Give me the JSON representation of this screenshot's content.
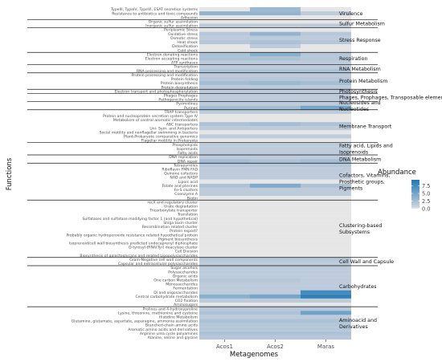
{
  "chart_data": {
    "type": "heatmap",
    "title": "",
    "xlabel": "Metagenomes",
    "ylabel": "Functions",
    "columns": [
      "Acos1",
      "Acos2",
      "Maras"
    ],
    "legend": {
      "title": "Abundance",
      "ticks": [
        0.0,
        2.5,
        5.0,
        7.5
      ],
      "range": [
        0,
        9.5
      ],
      "low_color": "#c7d0dc",
      "high_color": "#1f78b4",
      "zero_color": "#e6e6e6",
      "placement": "right"
    },
    "grid": false,
    "groups": [
      {
        "name": "Virulence",
        "rows": [
          {
            "label": "TypeIII, TypeIV, TypeVI, ESAT secretion systems",
            "values": [
              0,
              2.5,
              0
            ]
          },
          {
            "label": "Resistance to antibiotics and toxic compounds",
            "values": [
              3.0,
              3.0,
              0.5
            ]
          },
          {
            "label": "Adhesion",
            "values": [
              0,
              0,
              0
            ]
          }
        ]
      },
      {
        "name": "Sulfur Metabolism",
        "rows": [
          {
            "label": "Organic sulfur assimilation",
            "values": [
              0,
              0,
              0
            ]
          },
          {
            "label": "Inorganic sulfur assimilation",
            "values": [
              0.5,
              0.5,
              0.5
            ]
          }
        ]
      },
      {
        "name": "Stress Response",
        "rows": [
          {
            "label": "Periplasmic Stress",
            "values": [
              0,
              0,
              0
            ]
          },
          {
            "label": "Oxidative stress",
            "values": [
              1.0,
              3.0,
              1.0
            ]
          },
          {
            "label": "Osmotic stress",
            "values": [
              0.5,
              0.5,
              0.5
            ]
          },
          {
            "label": "Heat shock",
            "values": [
              1.0,
              1.5,
              1.0
            ]
          },
          {
            "label": "Detoxification",
            "values": [
              0,
              0.5,
              0
            ]
          },
          {
            "label": "Cold shock",
            "values": [
              0,
              0,
              0
            ]
          }
        ]
      },
      {
        "name": "Respiration",
        "rows": [
          {
            "label": "Electron donating reactions",
            "values": [
              1.5,
              3.5,
              1.0
            ]
          },
          {
            "label": "Electron accepting reactions",
            "values": [
              1.5,
              1.5,
              1.0
            ]
          },
          {
            "label": "ATP synthases",
            "values": [
              0.5,
              0.5,
              0.5
            ]
          }
        ]
      },
      {
        "name": "RNA Metabolism",
        "rows": [
          {
            "label": "Transcription",
            "values": [
              0.5,
              0.5,
              0.5
            ]
          },
          {
            "label": "RNA processing and modification",
            "values": [
              1.5,
              1.5,
              1.5
            ]
          }
        ]
      },
      {
        "name": "Protein Metabolism",
        "rows": [
          {
            "label": "Protein processing and modification",
            "values": [
              0.5,
              0.5,
              0.5
            ]
          },
          {
            "label": "Protein folding",
            "values": [
              1.0,
              1.0,
              1.0
            ]
          },
          {
            "label": "Protein biosynthesis",
            "values": [
              2.0,
              2.5,
              2.0
            ]
          },
          {
            "label": "Protein degradation",
            "values": [
              0.5,
              0.5,
              0.5
            ]
          }
        ]
      },
      {
        "name": "Photosynthesis",
        "rows": [
          {
            "label": "Electron transport and photophosphorylation",
            "values": [
              0.5,
              0.5,
              0.5
            ]
          }
        ]
      },
      {
        "name": "Phages, Prophages, Transposable elements",
        "rows": [
          {
            "label": "Phages Prophages",
            "values": [
              0.5,
              0.5,
              0.5
            ]
          },
          {
            "label": "Pathogenicity islands",
            "values": [
              0.5,
              0.5,
              0.5
            ]
          }
        ]
      },
      {
        "name": "Nucleosides and Nucleotides",
        "rows": [
          {
            "label": "Pyrimidines",
            "values": [
              0.5,
              0.5,
              0.5
            ]
          },
          {
            "label": "Purines",
            "values": [
              2.0,
              2.0,
              4.5
            ]
          }
        ]
      },
      {
        "name": "Membrane Transport",
        "rows": [
          {
            "label": "TRAP transporters",
            "values": [
              0.5,
              0.5,
              0.5
            ]
          },
          {
            "label": "Protein and nucleoprotein secretion system Type IV",
            "values": [
              0,
              0,
              0
            ]
          },
          {
            "label": "Metabolism of central aromatic intermediates",
            "values": [
              0,
              0,
              0
            ]
          },
          {
            "label": "ABC transporters",
            "values": [
              1.5,
              2.0,
              1.5
            ]
          },
          {
            "label": "Uni- Sym- and Antiporters",
            "values": [
              0.5,
              0.5,
              0.5
            ]
          },
          {
            "label": "Social motility and nonflagellar swimming in bacteria",
            "values": [
              0,
              0,
              0
            ]
          },
          {
            "label": "Plant-Prokaryote comparative genomics",
            "values": [
              0.5,
              0.5,
              0.5
            ]
          },
          {
            "label": "Flagellar motility in Prokaryota",
            "values": [
              0,
              0,
              0
            ]
          }
        ]
      },
      {
        "name": "Fatty acid, Lipids and Isoprenoids",
        "rows": [
          {
            "label": "Phospholipids",
            "values": [
              0.5,
              0.5,
              0.5
            ]
          },
          {
            "label": "Isoprenoids",
            "values": [
              0.5,
              0.5,
              0.5
            ]
          },
          {
            "label": "Fatty acids",
            "values": [
              0.5,
              0.5,
              0.5
            ]
          }
        ]
      },
      {
        "name": "DNA Metabolism",
        "rows": [
          {
            "label": "DNA replication",
            "values": [
              0.5,
              0.5,
              0.5
            ]
          },
          {
            "label": "DNA repair",
            "values": [
              2.0,
              1.5,
              2.0
            ]
          }
        ]
      },
      {
        "name": "Cofactors, Vitamins, Prosthetic groups, Pigments",
        "rows": [
          {
            "label": "Tetrapyrroles",
            "values": [
              1.0,
              1.0,
              1.0
            ]
          },
          {
            "label": "Riboflavin FMN FAD",
            "values": [
              0.5,
              0.5,
              0.5
            ]
          },
          {
            "label": "Quinone cofactors",
            "values": [
              0.5,
              0.5,
              0.5
            ]
          },
          {
            "label": "NAD and NADP",
            "values": [
              0.5,
              0.5,
              0.5
            ]
          },
          {
            "label": "Lipoic acid",
            "values": [
              0,
              0,
              0
            ]
          },
          {
            "label": "Folate and pterines",
            "values": [
              1.5,
              4.0,
              1.5
            ]
          },
          {
            "label": "Fe-S clusters",
            "values": [
              0.5,
              0.5,
              0.5
            ]
          },
          {
            "label": "Coenzyme A",
            "values": [
              0.5,
              0.5,
              0.5
            ]
          },
          {
            "label": "Biotin",
            "values": [
              0,
              0,
              0
            ]
          }
        ]
      },
      {
        "name": "Clustering-based Subsystems",
        "rows": [
          {
            "label": "recX and regulatory cluster",
            "values": [
              0,
              0,
              0
            ]
          },
          {
            "label": "Urate degradation",
            "values": [
              0,
              0,
              0
            ]
          },
          {
            "label": "Tricarboxylate transporter",
            "values": [
              0,
              0,
              0
            ]
          },
          {
            "label": "Translation",
            "values": [
              0,
              0,
              0
            ]
          },
          {
            "label": "Sulfatases and sulfatase modifying factor 1 (and  hypothetical)",
            "values": [
              0,
              0,
              0
            ]
          },
          {
            "label": "Shiga toxin cluster",
            "values": [
              0,
              0,
              0
            ]
          },
          {
            "label": "Recombination related cluster",
            "values": [
              0,
              0,
              0
            ]
          },
          {
            "label": "Protein export?",
            "values": [
              0,
              0,
              0
            ]
          },
          {
            "label": "Probably organic hydroperoxide resistance related hypothetical protein",
            "values": [
              0,
              0,
              0
            ]
          },
          {
            "label": "Pigment biosynthesis",
            "values": [
              0,
              0,
              0
            ]
          },
          {
            "label": "Isoprenoid/cell wall biosynthesis predicted undecaprenyl diphosphate",
            "values": [
              0,
              0,
              0
            ]
          },
          {
            "label": "D-tyrosyl-tRNA(Tyr) deacylase cluster",
            "values": [
              0,
              0,
              0
            ]
          },
          {
            "label": "Cell Division",
            "values": [
              0,
              0,
              0
            ]
          },
          {
            "label": "Biosynthesis of galactoglycans and related Lipopolysaccharides",
            "values": [
              0,
              0,
              0
            ]
          }
        ]
      },
      {
        "name": "Cell Wall and Capsule",
        "rows": [
          {
            "label": "Gram-Negative cell wall components",
            "values": [
              1.0,
              1.0,
              1.0
            ]
          },
          {
            "label": "Capsular and extracellular polysaccharides",
            "values": [
              0.5,
              0.5,
              0.5
            ]
          }
        ]
      },
      {
        "name": "Carbohydrates",
        "rows": [
          {
            "label": "Sugar alcohols",
            "values": [
              0.5,
              0.5,
              0.5
            ]
          },
          {
            "label": "Polysaccharides",
            "values": [
              0.5,
              0.5,
              0.5
            ]
          },
          {
            "label": "Organic acids",
            "values": [
              0.5,
              0.5,
              0.5
            ]
          },
          {
            "label": "One carbon Metabolism",
            "values": [
              1.0,
              1.0,
              0.5
            ]
          },
          {
            "label": "Monosaccharides",
            "values": [
              0.5,
              0.5,
              0.5
            ]
          },
          {
            "label": "Fermentation",
            "values": [
              0.5,
              0.5,
              0.5
            ]
          },
          {
            "label": "Di and oligosaccharides",
            "values": [
              0.5,
              0.5,
              7.5
            ]
          },
          {
            "label": "Central carbohydrate metabolism",
            "values": [
              3.5,
              4.5,
              8.5
            ]
          },
          {
            "label": "CO2 fixation",
            "values": [
              0.5,
              0.5,
              0.5
            ]
          },
          {
            "label": "Aminosugars",
            "values": [
              0,
              0,
              0
            ]
          }
        ]
      },
      {
        "name": "Aminoacid and Derivatives",
        "rows": [
          {
            "label": "Prolines and 4-hydroxyproline",
            "values": [
              1.0,
              1.0,
              1.0
            ]
          },
          {
            "label": "Lysine, threonine, methionine and cysteine",
            "values": [
              1.5,
              1.5,
              5.0
            ]
          },
          {
            "label": "Histidine Metabolism",
            "values": [
              0.5,
              0.5,
              0.5
            ]
          },
          {
            "label": "Glutamine, glutamate, aspartate, asparagine, ammonia assimilation",
            "values": [
              1.5,
              1.5,
              1.5
            ]
          },
          {
            "label": "Branched-chain amino acids",
            "values": [
              1.0,
              1.0,
              1.0
            ]
          },
          {
            "label": "Aromatic amino acids and derivatives",
            "values": [
              1.0,
              1.0,
              1.0
            ]
          },
          {
            "label": "Arginine urea cycle polyamines",
            "values": [
              1.5,
              1.5,
              1.5
            ]
          },
          {
            "label": "Alanine, serine and glycine",
            "values": [
              1.0,
              1.0,
              1.0
            ]
          }
        ]
      }
    ]
  }
}
